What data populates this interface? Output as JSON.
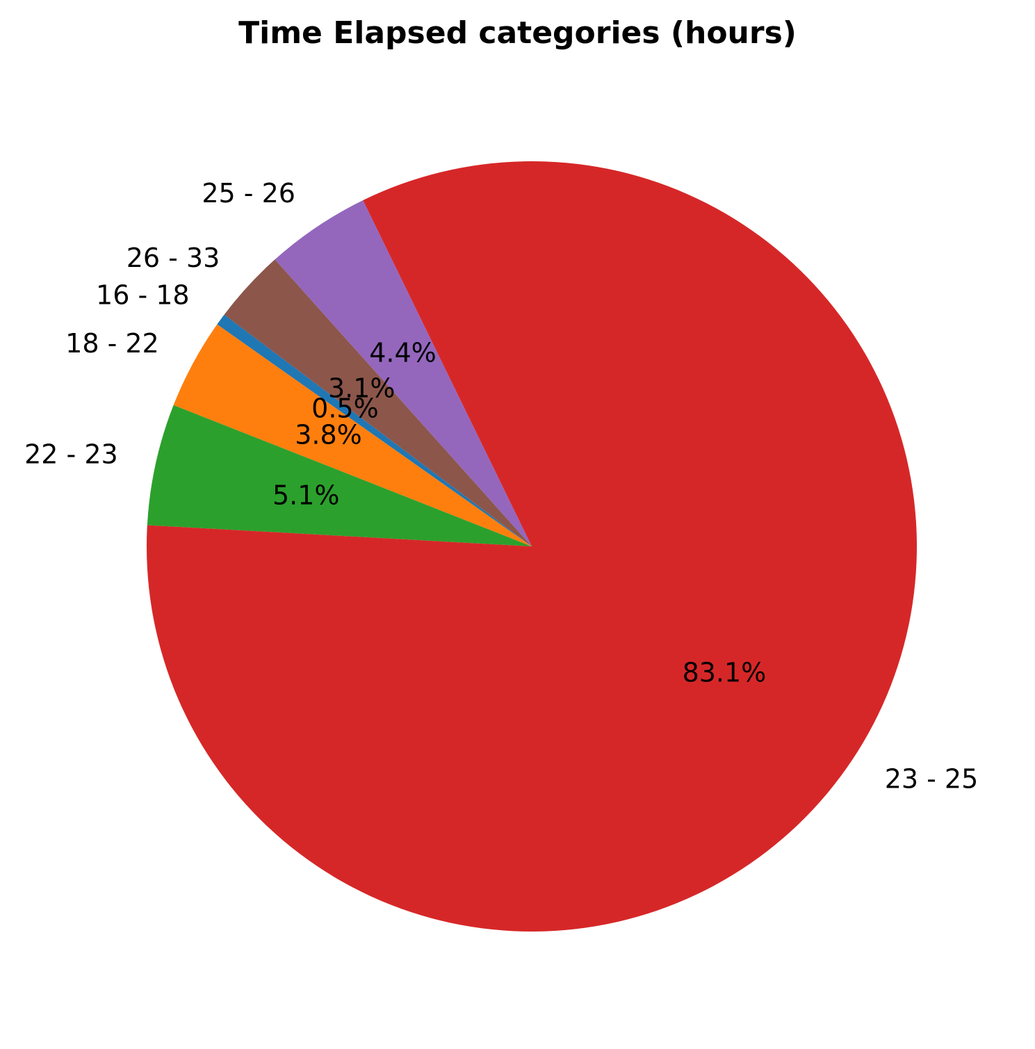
{
  "chart_data": {
    "type": "pie",
    "title": "Time Elapsed categories (hours)",
    "categories": [
      "16 - 18",
      "18 - 22",
      "22 - 23",
      "23 - 25",
      "25 - 26",
      "26 - 33"
    ],
    "values": [
      0.5,
      3.8,
      5.1,
      83.1,
      4.4,
      3.1
    ],
    "pct_labels": [
      "0.5%",
      "3.8%",
      "5.1%",
      "83.1%",
      "4.4%",
      "3.1%"
    ],
    "colors": [
      "#1f77b4",
      "#ff7f0e",
      "#2ca02c",
      "#d62728",
      "#9467bd",
      "#8c564b"
    ],
    "start_angle_deg": 143,
    "direction": "counterclockwise"
  }
}
